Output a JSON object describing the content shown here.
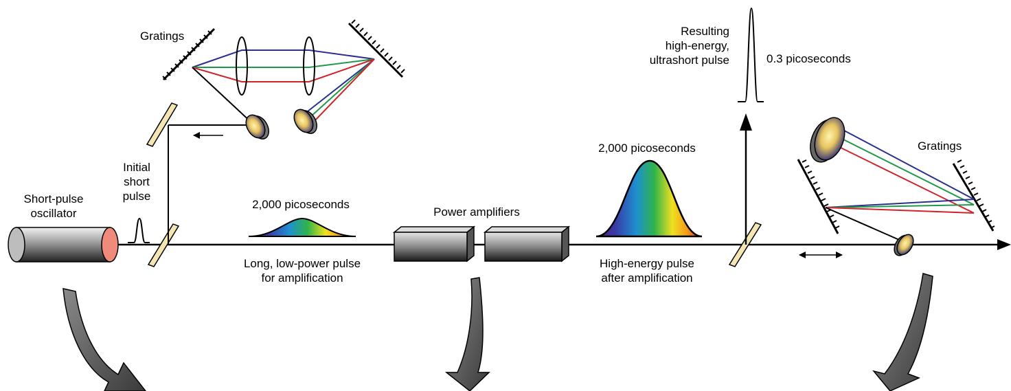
{
  "labels": {
    "oscillator": "Short-pulse\noscillator",
    "initial_pulse": "Initial\nshort\npulse",
    "gratings_left": "Gratings",
    "stretched_duration": "2,000 picoseconds",
    "stretched_caption": "Long, low-power pulse\nfor amplification",
    "power_amplifiers": "Power amplifiers",
    "amplified_duration": "2,000 picoseconds",
    "amplified_caption": "High-energy pulse\nafter amplification",
    "result_caption": "Resulting\nhigh-energy,\nultrashort pulse",
    "result_duration": "0.3 picoseconds",
    "gratings_right": "Gratings"
  },
  "colors": {
    "beam": "#000000",
    "ray_blue": "#2b2f8f",
    "ray_green": "#1f9a4a",
    "ray_red": "#d2232a",
    "mirror_fill": "#f3e6b3",
    "cylinder_end": "#f08a7a",
    "arrow_fill": "#555555"
  }
}
